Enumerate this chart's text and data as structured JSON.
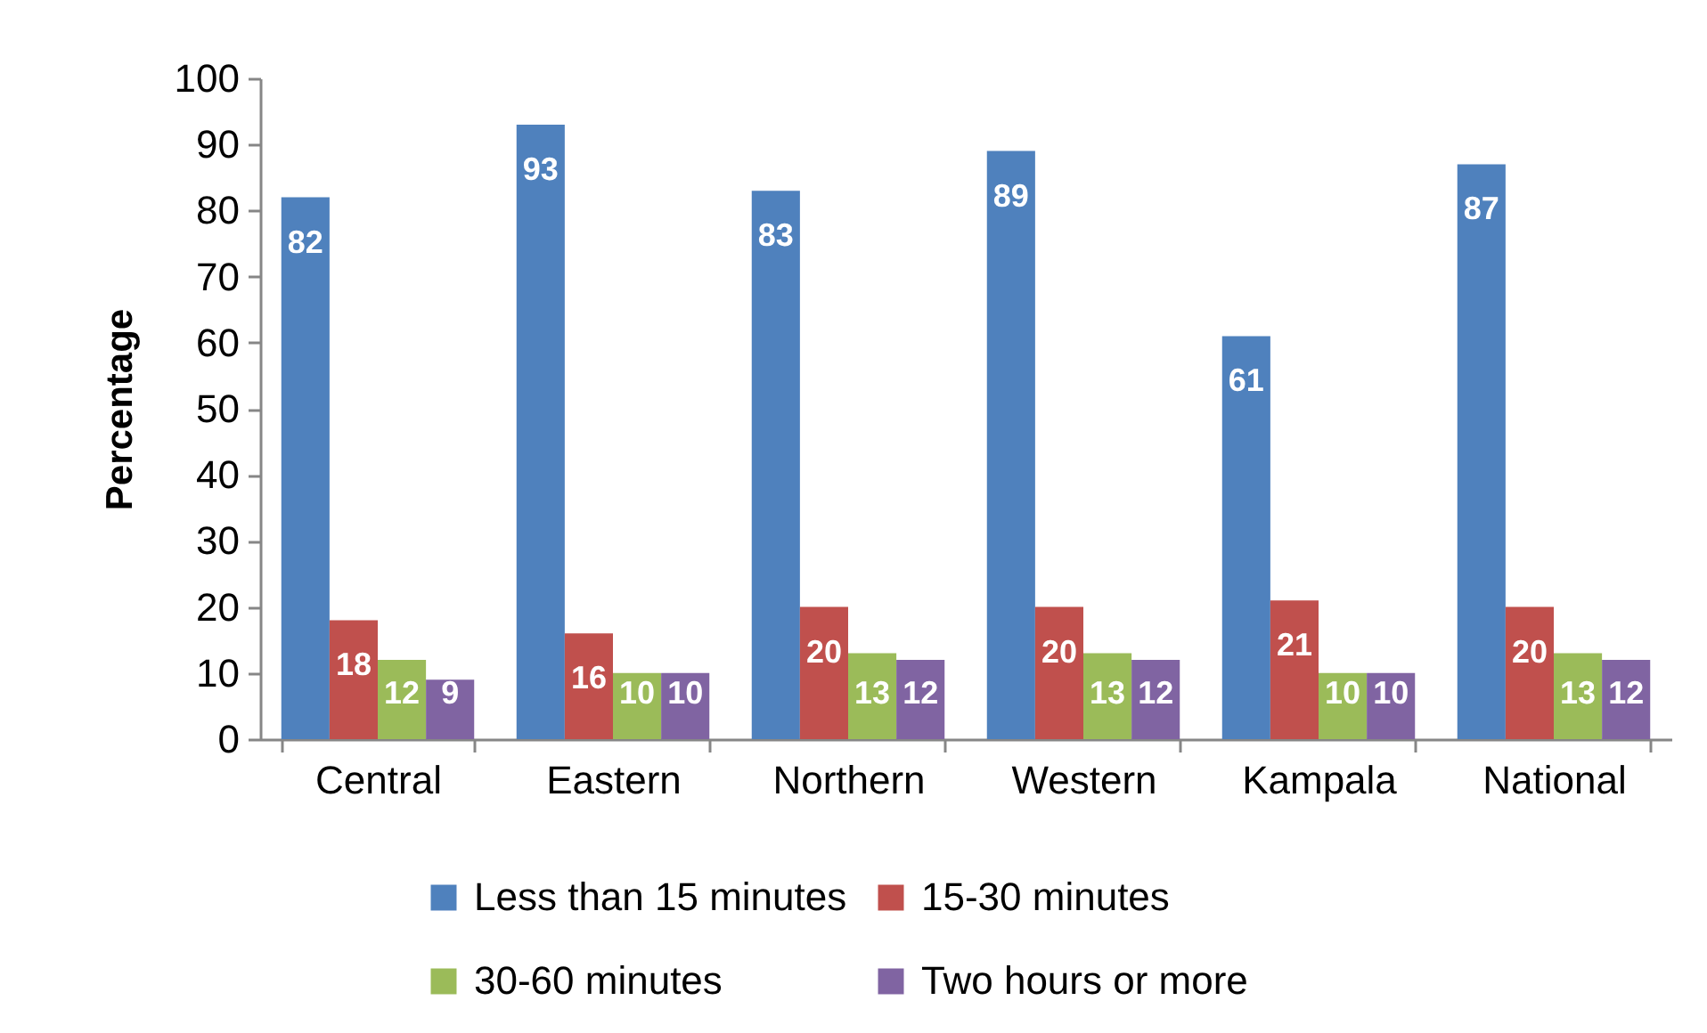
{
  "chart_data": {
    "type": "bar",
    "ylabel": "Percentage",
    "categories": [
      "Central",
      "Eastern",
      "Northern",
      "Western",
      "Kampala",
      "National"
    ],
    "series": [
      {
        "name": "Less than 15 minutes",
        "color": "#4f81bd",
        "values": [
          82,
          93,
          83,
          89,
          61,
          87
        ]
      },
      {
        "name": "15-30 minutes",
        "color": "#c0504d",
        "values": [
          18,
          16,
          20,
          20,
          21,
          20
        ]
      },
      {
        "name": "30-60 minutes",
        "color": "#9bbb59",
        "values": [
          12,
          10,
          13,
          13,
          10,
          13
        ]
      },
      {
        "name": "Two hours or more",
        "color": "#8064a2",
        "values": [
          9,
          10,
          12,
          12,
          10,
          12
        ]
      }
    ],
    "ylim": [
      0,
      100
    ],
    "yticks": [
      0,
      10,
      20,
      30,
      40,
      50,
      60,
      70,
      80,
      90,
      100
    ],
    "data_labels": true,
    "legend": "bottom",
    "grid": false
  }
}
